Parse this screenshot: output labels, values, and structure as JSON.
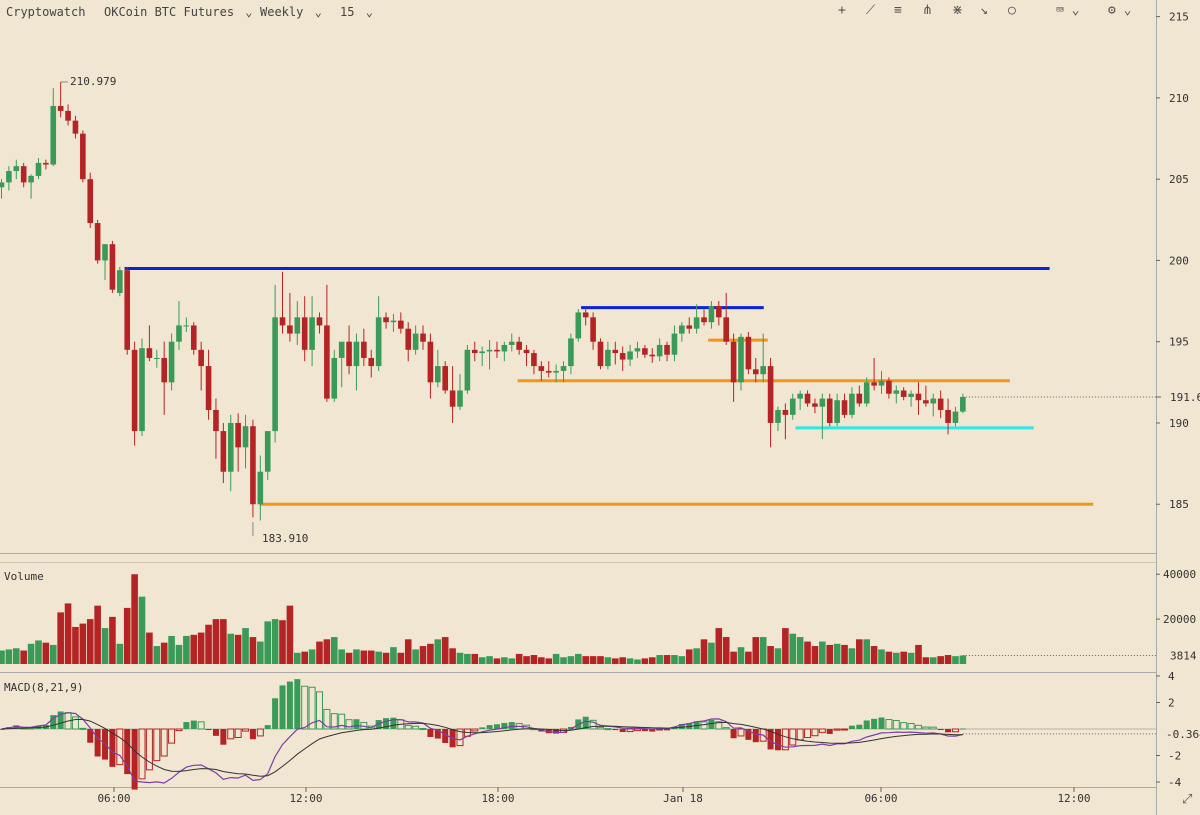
{
  "toolbar": {
    "brand": "Cryptowatch",
    "market": "OKCoin BTC Futures",
    "contract": "Weekly",
    "period": "15",
    "tools": [
      {
        "icon": "crosshair-icon",
        "glyph": "+"
      },
      {
        "icon": "trendline-icon",
        "glyph": "⟋"
      },
      {
        "icon": "horizontal-lines-icon",
        "glyph": "≡"
      },
      {
        "icon": "pitchfork-icon",
        "glyph": "⋔"
      },
      {
        "icon": "fan-icon",
        "glyph": "⋇"
      },
      {
        "icon": "arrow-icon",
        "glyph": "↘"
      },
      {
        "icon": "circle-icon",
        "glyph": "○"
      }
    ],
    "keyboard_icon": "⌨",
    "settings_icon": "⚙",
    "caret": "⌄"
  },
  "colors": {
    "background": "#f0e6d2",
    "up": "#3a9b58",
    "down": "#b42424",
    "hline_blue": "#0a22d8",
    "hline_orange": "#f0961e",
    "hline_cyan": "#2ee8e8",
    "macd_line": "#7c3fa8",
    "signal_line": "#333333"
  },
  "chart_data": {
    "type": "candlestick",
    "price_axis": {
      "ticks": [
        185,
        190,
        195,
        200,
        205,
        210,
        215
      ],
      "min": 182,
      "max": 215.5
    },
    "time_axis": {
      "labels": [
        "06:00",
        "12:00",
        "18:00",
        "Jan 18",
        "06:00",
        "12:00"
      ]
    },
    "annotations": {
      "high": "210.979",
      "low": "183.910",
      "last_price": "191.6"
    },
    "horizontal_lines": [
      {
        "price": 199.5,
        "from": 15.5,
        "to": 132,
        "color": "hline_blue"
      },
      {
        "price": 197.1,
        "from": 73,
        "to": 96,
        "color": "hline_blue"
      },
      {
        "price": 195.1,
        "from": 89,
        "to": 96.5,
        "color": "hline_orange"
      },
      {
        "price": 192.6,
        "from": 65,
        "to": 127,
        "color": "hline_orange"
      },
      {
        "price": 189.7,
        "from": 100,
        "to": 130,
        "color": "hline_cyan"
      },
      {
        "price": 185.0,
        "from": 32.5,
        "to": 137.5,
        "color": "hline_orange"
      }
    ],
    "candles": [
      [
        204.5,
        205.0,
        203.8,
        204.8
      ],
      [
        204.8,
        205.8,
        204.3,
        205.5
      ],
      [
        205.5,
        206.2,
        205.0,
        205.8
      ],
      [
        205.8,
        206.0,
        204.5,
        204.8
      ],
      [
        204.8,
        205.3,
        203.8,
        205.2
      ],
      [
        205.2,
        206.3,
        205.0,
        206.0
      ],
      [
        206.0,
        206.2,
        205.6,
        205.9
      ],
      [
        205.9,
        210.6,
        205.8,
        209.5
      ],
      [
        209.5,
        210.98,
        208.8,
        209.2
      ],
      [
        209.2,
        209.6,
        208.3,
        208.6
      ],
      [
        208.6,
        208.9,
        207.5,
        207.8
      ],
      [
        207.8,
        208.0,
        204.8,
        205.0
      ],
      [
        205.0,
        205.4,
        202.0,
        202.3
      ],
      [
        202.3,
        202.5,
        199.8,
        200.0
      ],
      [
        200.0,
        201.0,
        198.8,
        201.0
      ],
      [
        201.0,
        201.2,
        198.0,
        198.2
      ],
      [
        198.0,
        199.6,
        197.8,
        199.4
      ],
      [
        199.4,
        199.6,
        194.2,
        194.5
      ],
      [
        194.5,
        195.0,
        188.6,
        189.5
      ],
      [
        189.5,
        195.2,
        189.2,
        194.6
      ],
      [
        194.6,
        196.0,
        193.8,
        194.0
      ],
      [
        194.0,
        194.5,
        193.4,
        194.0
      ],
      [
        194.0,
        195.0,
        190.5,
        192.5
      ],
      [
        192.5,
        195.5,
        192.0,
        195.0
      ],
      [
        195.0,
        197.5,
        194.5,
        196.0
      ],
      [
        196.0,
        196.5,
        195.6,
        196.0
      ],
      [
        196.0,
        196.2,
        194.2,
        194.5
      ],
      [
        194.5,
        195.0,
        192.0,
        193.5
      ],
      [
        193.5,
        194.5,
        190.2,
        190.8
      ],
      [
        190.8,
        191.5,
        187.8,
        189.5
      ],
      [
        189.5,
        190.0,
        186.3,
        187.0
      ],
      [
        187.0,
        190.5,
        185.8,
        190.0
      ],
      [
        190.0,
        190.6,
        187.0,
        188.5
      ],
      [
        188.5,
        190.5,
        187.2,
        189.8
      ],
      [
        189.8,
        190.2,
        184.2,
        185.0
      ],
      [
        185.0,
        188.0,
        184.0,
        187.0
      ],
      [
        187.0,
        189.5,
        186.5,
        189.5
      ],
      [
        189.5,
        198.5,
        188.8,
        196.5
      ],
      [
        196.5,
        199.3,
        195.5,
        196.0
      ],
      [
        196.0,
        198.0,
        195.0,
        195.5
      ],
      [
        195.5,
        197.5,
        194.8,
        196.5
      ],
      [
        196.5,
        197.8,
        193.8,
        194.5
      ],
      [
        194.5,
        197.8,
        193.5,
        196.5
      ],
      [
        196.5,
        196.8,
        195.5,
        196.0
      ],
      [
        196.0,
        198.5,
        191.3,
        191.5
      ],
      [
        191.5,
        194.5,
        191.3,
        194.0
      ],
      [
        194.0,
        194.8,
        192.2,
        195.0
      ],
      [
        195.0,
        196.0,
        193.0,
        193.5
      ],
      [
        193.5,
        195.5,
        192.0,
        195.0
      ],
      [
        195.0,
        195.8,
        193.5,
        194.0
      ],
      [
        194.0,
        194.5,
        192.8,
        193.5
      ],
      [
        193.5,
        197.8,
        193.2,
        196.5
      ],
      [
        196.5,
        196.8,
        195.8,
        196.2
      ],
      [
        196.2,
        196.7,
        195.6,
        196.3
      ],
      [
        196.3,
        196.8,
        195.5,
        195.8
      ],
      [
        195.8,
        196.2,
        193.8,
        194.5
      ],
      [
        194.5,
        196.0,
        194.2,
        195.5
      ],
      [
        195.5,
        196.0,
        194.5,
        195.0
      ],
      [
        195.0,
        195.5,
        191.5,
        192.5
      ],
      [
        192.5,
        194.5,
        192.2,
        193.5
      ],
      [
        193.5,
        193.8,
        191.8,
        192.0
      ],
      [
        192.0,
        193.5,
        190.0,
        191.0
      ],
      [
        191.0,
        193.0,
        190.8,
        192.0
      ],
      [
        192.0,
        194.8,
        191.8,
        194.5
      ],
      [
        194.5,
        195.0,
        193.8,
        194.3
      ],
      [
        194.3,
        194.7,
        193.5,
        194.4
      ],
      [
        194.4,
        195.1,
        193.3,
        194.5
      ],
      [
        194.5,
        195.0,
        194.0,
        194.4
      ],
      [
        194.4,
        195.0,
        193.8,
        194.8
      ],
      [
        194.8,
        195.5,
        194.4,
        195.0
      ],
      [
        195.0,
        195.3,
        194.2,
        194.5
      ],
      [
        194.5,
        194.8,
        193.5,
        194.3
      ],
      [
        194.3,
        194.5,
        193.0,
        193.5
      ],
      [
        193.5,
        193.8,
        192.6,
        193.2
      ],
      [
        193.2,
        193.8,
        192.8,
        193.1
      ],
      [
        193.1,
        193.6,
        192.5,
        193.2
      ],
      [
        193.2,
        193.8,
        192.5,
        193.5
      ],
      [
        193.5,
        195.5,
        193.0,
        195.2
      ],
      [
        195.2,
        197.0,
        195.0,
        196.8
      ],
      [
        196.8,
        197.1,
        196.0,
        196.5
      ],
      [
        196.5,
        196.8,
        194.5,
        195.0
      ],
      [
        195.0,
        195.2,
        193.3,
        193.5
      ],
      [
        193.5,
        195.0,
        193.3,
        194.5
      ],
      [
        194.5,
        195.0,
        193.6,
        194.3
      ],
      [
        194.3,
        194.7,
        193.2,
        193.9
      ],
      [
        193.9,
        194.8,
        193.5,
        194.4
      ],
      [
        194.4,
        195.0,
        194.0,
        194.6
      ],
      [
        194.6,
        194.8,
        194.0,
        194.2
      ],
      [
        194.2,
        194.6,
        193.7,
        194.1
      ],
      [
        194.1,
        195.2,
        193.8,
        194.8
      ],
      [
        194.8,
        195.0,
        193.8,
        194.2
      ],
      [
        194.2,
        196.0,
        193.8,
        195.5
      ],
      [
        195.5,
        196.2,
        195.0,
        196.0
      ],
      [
        196.0,
        196.5,
        195.5,
        195.8
      ],
      [
        195.8,
        197.3,
        195.5,
        196.5
      ],
      [
        196.5,
        197.0,
        196.0,
        196.2
      ],
      [
        196.2,
        197.5,
        195.8,
        197.2
      ],
      [
        197.2,
        197.5,
        196.0,
        196.5
      ],
      [
        196.5,
        198.0,
        194.8,
        195.0
      ],
      [
        195.0,
        195.5,
        191.3,
        192.5
      ],
      [
        192.5,
        195.5,
        192.0,
        195.3
      ],
      [
        195.3,
        195.6,
        193.0,
        193.3
      ],
      [
        193.3,
        194.0,
        192.5,
        193.0
      ],
      [
        193.0,
        195.5,
        192.5,
        193.5
      ],
      [
        193.5,
        194.0,
        188.5,
        190.0
      ],
      [
        190.0,
        191.0,
        189.5,
        190.8
      ],
      [
        190.8,
        191.2,
        189.0,
        190.5
      ],
      [
        190.5,
        191.8,
        190.2,
        191.5
      ],
      [
        191.5,
        192.0,
        190.8,
        191.8
      ],
      [
        191.8,
        192.0,
        191.0,
        191.2
      ],
      [
        191.2,
        191.5,
        190.6,
        191.0
      ],
      [
        191.0,
        191.8,
        189.0,
        191.5
      ],
      [
        191.5,
        191.8,
        189.8,
        190.0
      ],
      [
        190.0,
        191.8,
        189.8,
        191.4
      ],
      [
        191.4,
        191.8,
        190.3,
        190.5
      ],
      [
        190.5,
        192.2,
        190.3,
        191.8
      ],
      [
        191.8,
        192.3,
        191.0,
        191.2
      ],
      [
        191.2,
        192.8,
        191.0,
        192.5
      ],
      [
        192.5,
        194.0,
        192.0,
        192.3
      ],
      [
        192.3,
        193.2,
        191.8,
        192.6
      ],
      [
        192.6,
        192.8,
        191.5,
        191.8
      ],
      [
        191.8,
        192.3,
        191.2,
        192.0
      ],
      [
        192.0,
        192.2,
        191.4,
        191.6
      ],
      [
        191.6,
        192.0,
        191.0,
        191.8
      ],
      [
        191.8,
        192.5,
        190.5,
        191.4
      ],
      [
        191.4,
        192.3,
        191.0,
        191.2
      ],
      [
        191.2,
        191.8,
        190.4,
        191.5
      ],
      [
        191.5,
        192.0,
        190.3,
        190.8
      ],
      [
        190.8,
        191.5,
        189.3,
        190.0
      ],
      [
        190.0,
        191.0,
        189.8,
        190.7
      ],
      [
        190.7,
        191.8,
        190.6,
        191.6
      ]
    ],
    "volume": {
      "label": "Volume",
      "ticks": [
        20000,
        40000
      ],
      "tick_labels": [
        "20000",
        "40000"
      ],
      "max": 45000,
      "last_label": "3814",
      "last_value": 3814,
      "values": [
        6000,
        6500,
        7000,
        6000,
        9000,
        10500,
        9500,
        8500,
        23000,
        27000,
        16500,
        18000,
        20000,
        26000,
        16000,
        21000,
        9000,
        25000,
        40000,
        30000,
        14000,
        8000,
        9500,
        12500,
        8500,
        12500,
        13000,
        14000,
        17500,
        20000,
        20000,
        13500,
        13000,
        16000,
        12000,
        10000,
        19000,
        20000,
        19500,
        26000,
        5000,
        5500,
        6500,
        10000,
        11000,
        12000,
        6500,
        5000,
        6500,
        6000,
        6000,
        5500,
        5000,
        7500,
        5000,
        11000,
        6500,
        8000,
        9000,
        11000,
        12000,
        7000,
        5000,
        4500,
        4500,
        3000,
        3500,
        2500,
        3000,
        2500,
        4500,
        3500,
        4000,
        3000,
        2500,
        4500,
        3000,
        3500,
        4500,
        3500,
        3500,
        3500,
        3000,
        2500,
        3000,
        2500,
        2000,
        2500,
        3000,
        4000,
        4000,
        4000,
        3500,
        6500,
        7000,
        11000,
        9500,
        16000,
        12000,
        5500,
        7500,
        5500,
        12000,
        12000,
        8000,
        7000,
        16000,
        13500,
        12000,
        10000,
        8000,
        10000,
        8500,
        9000,
        8500,
        7000,
        11000,
        11000,
        8000,
        6500,
        5500,
        5000,
        5500,
        5000,
        8500,
        3000,
        3000,
        3500,
        4000,
        3500,
        3814
      ]
    },
    "macd": {
      "label": "MACD(8,21,9)",
      "ticks": [
        -4,
        -2,
        2,
        4
      ],
      "tick_labels": [
        "-4",
        "-2",
        "2",
        "4"
      ],
      "last_label": "-0.364",
      "last_value": -0.364
    }
  }
}
